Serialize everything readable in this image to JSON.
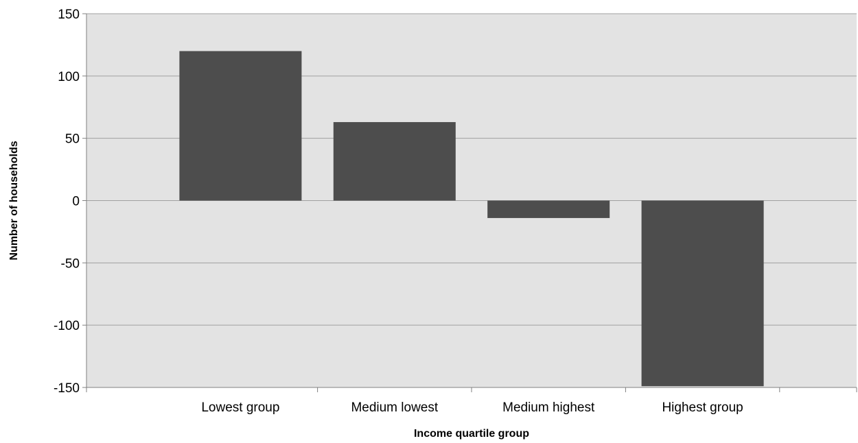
{
  "chart_data": {
    "type": "bar",
    "title": "",
    "xlabel": "Income quartile group",
    "ylabel": "Number of households",
    "categories": [
      "Lowest group",
      "Medium lowest",
      "Medium highest",
      "Highest group"
    ],
    "series": [
      {
        "values": [
          120,
          63,
          -14,
          -149
        ]
      }
    ],
    "ylim": [
      -150,
      150
    ],
    "yticks": [
      150,
      100,
      50,
      0,
      -50,
      -100,
      -150
    ],
    "ytick_labels": [
      "150",
      "100",
      "50",
      "0",
      "-50",
      "-100",
      "-150"
    ],
    "grid": true,
    "legend": "none",
    "colors": {
      "bar": "#4d4d4d",
      "plot_background": "#e3e3e3",
      "gridline": "#a0a0a0",
      "axis": "#808080"
    }
  }
}
